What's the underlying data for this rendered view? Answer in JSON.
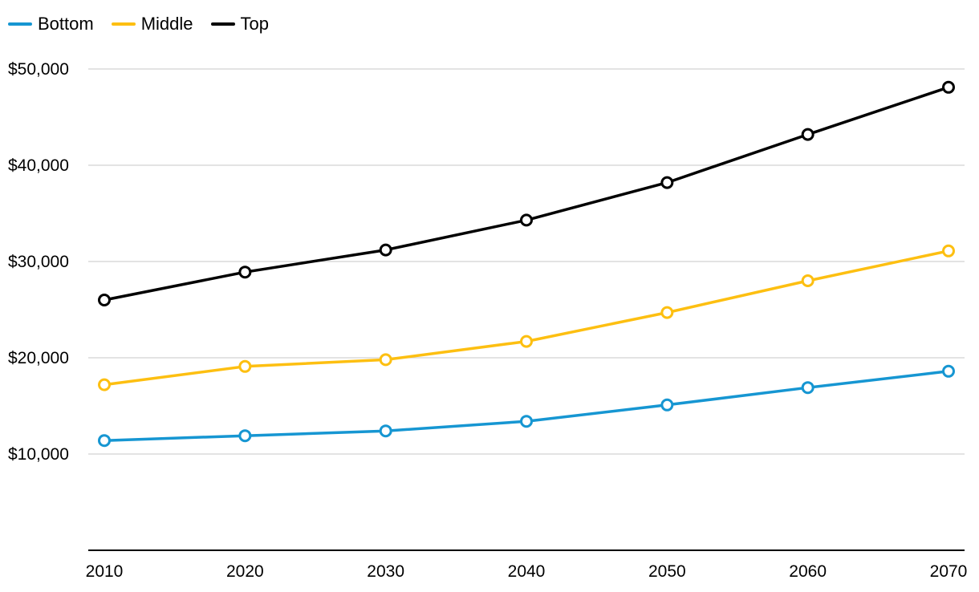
{
  "chart_data": {
    "type": "line",
    "title": "",
    "xlabel": "",
    "ylabel": "",
    "x": [
      2010,
      2020,
      2030,
      2040,
      2050,
      2060,
      2070
    ],
    "x_tick_labels": [
      "2010",
      "2020",
      "2030",
      "2040",
      "2050",
      "2060",
      "2070"
    ],
    "ylim": [
      0,
      50000
    ],
    "y_ticks": [
      10000,
      20000,
      30000,
      40000,
      50000
    ],
    "y_tick_labels": [
      "$10,000",
      "$20,000",
      "$30,000",
      "$40,000",
      "$50,000"
    ],
    "grid": true,
    "legend_position": "top-left",
    "series": [
      {
        "name": "Bottom",
        "color": "#1696d2",
        "values": [
          11400,
          11900,
          12400,
          13400,
          15100,
          16900,
          18600
        ]
      },
      {
        "name": "Middle",
        "color": "#fdbf11",
        "values": [
          17200,
          19100,
          19800,
          21700,
          24700,
          28000,
          31100
        ]
      },
      {
        "name": "Top",
        "color": "#000000",
        "values": [
          26000,
          28900,
          31200,
          34300,
          38200,
          43200,
          48100
        ]
      }
    ]
  }
}
